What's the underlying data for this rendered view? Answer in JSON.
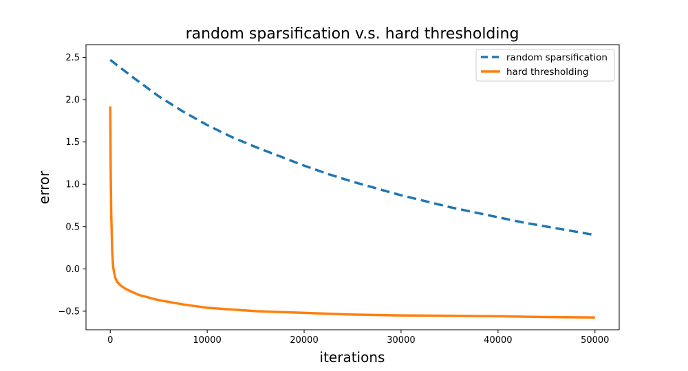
{
  "chart_data": {
    "type": "line",
    "title": "random sparsification v.s. hard thresholding",
    "xlabel": "iterations",
    "ylabel": "error",
    "xlim": [
      -2500,
      52500
    ],
    "ylim": [
      -0.72,
      2.65
    ],
    "xticks": [
      0,
      10000,
      20000,
      30000,
      40000,
      50000
    ],
    "xtick_labels": [
      "0",
      "10000",
      "20000",
      "30000",
      "40000",
      "50000"
    ],
    "yticks": [
      -0.5,
      0.0,
      0.5,
      1.0,
      1.5,
      2.0,
      2.5
    ],
    "ytick_labels": [
      "−0.5",
      "0.0",
      "0.5",
      "1.0",
      "1.5",
      "2.0",
      "2.5"
    ],
    "grid": false,
    "legend_position": "top-right",
    "series": [
      {
        "name": "random sparsification",
        "color": "#1f77b4",
        "style": "dashed",
        "x": [
          0,
          2500,
          5000,
          7500,
          10000,
          12500,
          15000,
          17500,
          20000,
          22500,
          25000,
          27500,
          30000,
          32500,
          35000,
          37500,
          40000,
          42500,
          45000,
          47500,
          50000
        ],
        "y": [
          2.47,
          2.25,
          2.04,
          1.86,
          1.7,
          1.56,
          1.44,
          1.33,
          1.22,
          1.12,
          1.03,
          0.95,
          0.87,
          0.8,
          0.73,
          0.67,
          0.61,
          0.55,
          0.5,
          0.45,
          0.4
        ]
      },
      {
        "name": "hard thresholding",
        "color": "#ff7f0e",
        "style": "solid",
        "x": [
          0,
          50,
          100,
          200,
          300,
          500,
          700,
          1000,
          1500,
          2000,
          3000,
          4000,
          5000,
          7500,
          10000,
          15000,
          20000,
          25000,
          30000,
          35000,
          40000,
          45000,
          50000
        ],
        "y": [
          1.92,
          1.15,
          0.65,
          0.22,
          0.02,
          -0.1,
          -0.15,
          -0.19,
          -0.23,
          -0.26,
          -0.31,
          -0.34,
          -0.37,
          -0.42,
          -0.46,
          -0.5,
          -0.52,
          -0.54,
          -0.55,
          -0.555,
          -0.56,
          -0.57,
          -0.575
        ]
      }
    ]
  }
}
